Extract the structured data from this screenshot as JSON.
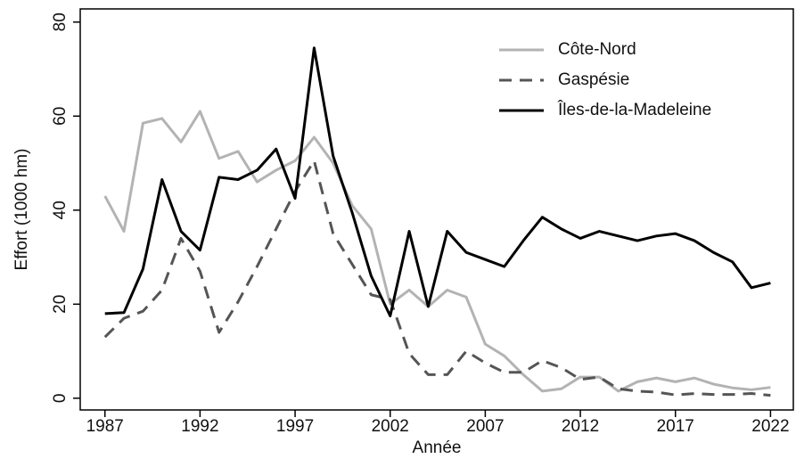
{
  "chart_data": {
    "type": "line",
    "xlabel": "Année",
    "ylabel": "Effort (1000 hm)",
    "x": [
      1987,
      1988,
      1989,
      1990,
      1991,
      1992,
      1993,
      1994,
      1995,
      1996,
      1997,
      1998,
      1999,
      2000,
      2001,
      2002,
      2003,
      2004,
      2005,
      2006,
      2007,
      2008,
      2009,
      2010,
      2011,
      2012,
      2013,
      2014,
      2015,
      2016,
      2017,
      2018,
      2019,
      2020,
      2021,
      2022
    ],
    "series": [
      {
        "name": "Côte-Nord",
        "color": "#b3b3b3",
        "linestyle": "solid",
        "values": [
          43,
          35.5,
          58.5,
          59.5,
          54.5,
          61,
          51,
          52.5,
          46,
          48.5,
          50.5,
          55.5,
          50,
          41,
          36,
          20,
          23,
          19.5,
          23,
          21.5,
          11.5,
          9,
          5,
          1.5,
          2,
          4.5,
          4.5,
          1.5,
          3.5,
          4.3,
          3.5,
          4.3,
          3,
          2.2,
          1.8,
          2.3
        ]
      },
      {
        "name": "Gaspésie",
        "color": "#555555",
        "linestyle": "dashed",
        "values": [
          13,
          17,
          18.5,
          23,
          34,
          27,
          14,
          20.5,
          28,
          36,
          44,
          50.5,
          35,
          28.5,
          22,
          21,
          9.5,
          5,
          5,
          10,
          7.5,
          5.5,
          5.5,
          8,
          6.5,
          4,
          4.5,
          2,
          1.5,
          1.3,
          0.7,
          1,
          0.8,
          0.8,
          1,
          0.6
        ]
      },
      {
        "name": "Îles-de-la-Madeleine",
        "color": "#000000",
        "linestyle": "solid",
        "values": [
          18,
          18.2,
          27.5,
          46.5,
          35.5,
          31.5,
          47,
          46.5,
          48.5,
          53,
          42.5,
          74.5,
          51.5,
          39.5,
          26,
          17.5,
          35.5,
          19.5,
          35.5,
          31,
          29.5,
          28,
          33.5,
          38.5,
          36,
          34,
          35.5,
          34.5,
          33.5,
          34.5,
          35,
          33.5,
          31,
          29,
          23.5,
          24.5
        ]
      }
    ],
    "xlim": [
      1985.7,
      2023.2
    ],
    "xticks": [
      1987,
      1992,
      1997,
      2002,
      2007,
      2012,
      2017,
      2022
    ],
    "ylim": [
      -2.5,
      82.8
    ],
    "yticks": [
      0,
      20,
      40,
      60,
      80
    ],
    "grid": false,
    "legend": "upper right"
  }
}
